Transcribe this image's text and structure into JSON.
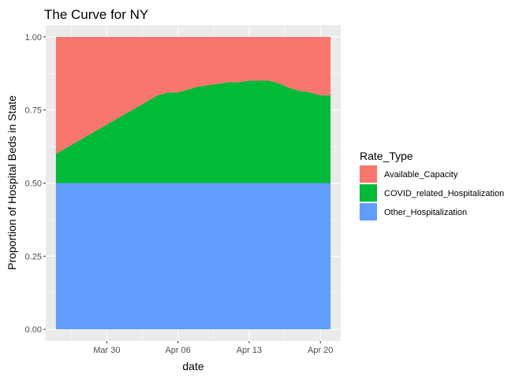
{
  "chart_data": {
    "type": "area",
    "stacked": true,
    "title": "The Curve for NY",
    "xlabel": "date",
    "ylabel": "Proportion of Hospital Beds in State",
    "x": [
      "2020-03-25",
      "2020-03-26",
      "2020-03-27",
      "2020-03-28",
      "2020-03-29",
      "2020-03-30",
      "2020-03-31",
      "2020-04-01",
      "2020-04-02",
      "2020-04-03",
      "2020-04-04",
      "2020-04-05",
      "2020-04-06",
      "2020-04-07",
      "2020-04-08",
      "2020-04-09",
      "2020-04-10",
      "2020-04-11",
      "2020-04-12",
      "2020-04-13",
      "2020-04-14",
      "2020-04-15",
      "2020-04-16",
      "2020-04-17",
      "2020-04-18",
      "2020-04-19",
      "2020-04-20",
      "2020-04-21"
    ],
    "x_ticks": [
      {
        "date": "2020-03-30",
        "label": "Mar 30"
      },
      {
        "date": "2020-04-06",
        "label": "Apr 06"
      },
      {
        "date": "2020-04-13",
        "label": "Apr 13"
      },
      {
        "date": "2020-04-20",
        "label": "Apr 20"
      }
    ],
    "xlim": [
      "2020-03-24",
      "2020-04-22"
    ],
    "y_ticks": [
      "0.00",
      "0.25",
      "0.50",
      "0.75",
      "1.00"
    ],
    "ylim": [
      -0.04,
      1.04
    ],
    "series": [
      {
        "name": "Other_Hospitalization",
        "color": "#619CFF",
        "values": [
          0.5,
          0.5,
          0.5,
          0.5,
          0.5,
          0.5,
          0.5,
          0.5,
          0.5,
          0.5,
          0.5,
          0.5,
          0.5,
          0.5,
          0.5,
          0.5,
          0.5,
          0.5,
          0.5,
          0.5,
          0.5,
          0.5,
          0.5,
          0.5,
          0.5,
          0.5,
          0.5,
          0.5
        ]
      },
      {
        "name": "COVID_related_Hospitalization",
        "color": "#00BA38",
        "values": [
          0.1,
          0.12,
          0.14,
          0.16,
          0.18,
          0.2,
          0.22,
          0.24,
          0.26,
          0.28,
          0.3,
          0.31,
          0.31,
          0.32,
          0.33,
          0.335,
          0.34,
          0.345,
          0.345,
          0.35,
          0.35,
          0.35,
          0.34,
          0.325,
          0.315,
          0.31,
          0.3,
          0.3
        ]
      },
      {
        "name": "Available_Capacity",
        "color": "#F8766D",
        "values": [
          0.4,
          0.38,
          0.36,
          0.34,
          0.32,
          0.3,
          0.28,
          0.26,
          0.24,
          0.22,
          0.2,
          0.19,
          0.19,
          0.18,
          0.17,
          0.165,
          0.16,
          0.155,
          0.155,
          0.15,
          0.15,
          0.15,
          0.16,
          0.175,
          0.185,
          0.19,
          0.2,
          0.2
        ]
      }
    ],
    "legend": {
      "title": "Rate_Type",
      "position": "right",
      "entries": [
        {
          "label": "Available_Capacity",
          "color": "#F8766D"
        },
        {
          "label": "COVID_related_Hospitalization",
          "color": "#00BA38"
        },
        {
          "label": "Other_Hospitalization",
          "color": "#619CFF"
        }
      ]
    },
    "panel_background": "#EBEBEB",
    "grid_color": "#FFFFFF",
    "grid": true
  }
}
